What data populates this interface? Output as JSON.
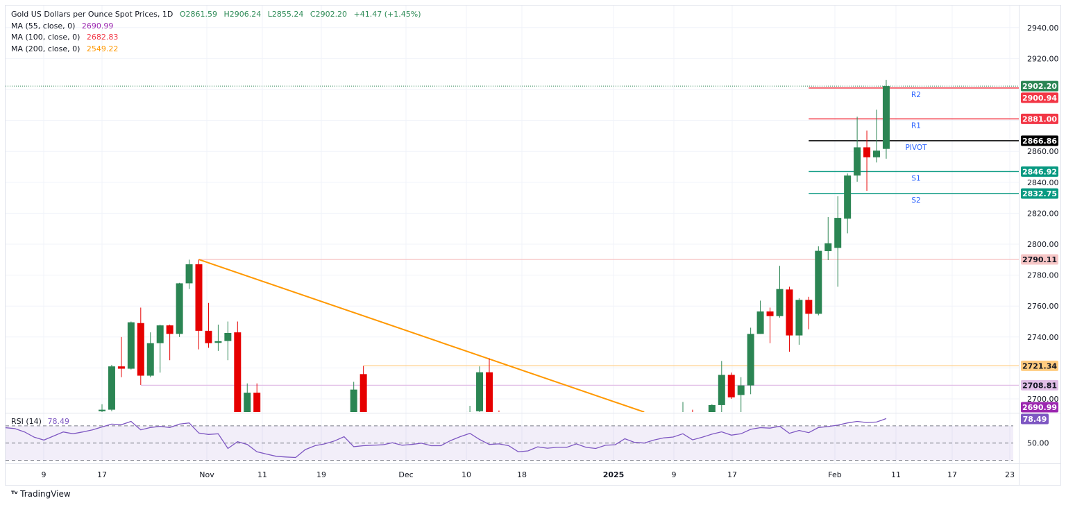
{
  "legend": {
    "title": "Gold US Dollars per Ounce Spot Prices, 1D",
    "open": "O2861.59",
    "high": "H2906.24",
    "low": "L2855.24",
    "close": "C2902.20",
    "change": "+41.47 (+1.45%)",
    "ma": [
      {
        "label": "MA (55, close, 0)",
        "value": "2690.99",
        "color": "#9c27b0"
      },
      {
        "label": "MA (100, close, 0)",
        "value": "2682.83",
        "color": "#f23645"
      },
      {
        "label": "MA (200, close, 0)",
        "value": "2549.22",
        "color": "#ff9800"
      }
    ]
  },
  "rsi_legend": {
    "label": "RSI (14)",
    "value": "78.49",
    "color": "#7e57c2"
  },
  "footer": {
    "brand": "TradingView",
    "logo_text": "17"
  },
  "colors": {
    "up": "#2b8553",
    "down": "#e60000",
    "pivot_text": "#2962ff",
    "trendline": "#ff9800"
  },
  "chart_data": {
    "type": "candlestick",
    "symbol": "Gold US Dollars per Ounce Spot Prices",
    "interval": "1D",
    "ylim": [
      2691.5,
      2948
    ],
    "y_ticks": [
      "2940.00",
      "2920.00",
      "2860.00",
      "2840.00",
      "2820.00",
      "2800.00",
      "2780.00",
      "2760.00",
      "2740.00",
      "2700.00"
    ],
    "x_ticks": [
      "9",
      "17",
      "Nov",
      "11",
      "19",
      "Dec",
      "10",
      "18",
      "2025",
      "9",
      "17",
      "Feb",
      "11",
      "17",
      "23"
    ],
    "grid": true,
    "candles": [
      {
        "date": "2024-10-17",
        "o": 2692,
        "h": 2696.5,
        "l": 2691,
        "c": 2693
      },
      {
        "date": "2024-10-18",
        "o": 2693,
        "h": 2722,
        "l": 2692,
        "c": 2721
      },
      {
        "date": "2024-10-21",
        "o": 2721,
        "h": 2740,
        "l": 2714,
        "c": 2719.5
      },
      {
        "date": "2024-10-22",
        "o": 2719.5,
        "h": 2750,
        "l": 2719,
        "c": 2749.5
      },
      {
        "date": "2024-10-23",
        "o": 2749,
        "h": 2759,
        "l": 2709,
        "c": 2715
      },
      {
        "date": "2024-10-24",
        "o": 2715,
        "h": 2743,
        "l": 2714,
        "c": 2736
      },
      {
        "date": "2024-10-25",
        "o": 2736,
        "h": 2748,
        "l": 2717,
        "c": 2747.5
      },
      {
        "date": "2024-10-28",
        "o": 2747.5,
        "h": 2748,
        "l": 2725,
        "c": 2742
      },
      {
        "date": "2024-10-29",
        "o": 2742,
        "h": 2775,
        "l": 2740,
        "c": 2774.7
      },
      {
        "date": "2024-10-30",
        "o": 2774.7,
        "h": 2790,
        "l": 2771,
        "c": 2787
      },
      {
        "date": "2024-10-31",
        "o": 2787,
        "h": 2790.1,
        "l": 2732,
        "c": 2744
      },
      {
        "date": "2024-11-01",
        "o": 2744,
        "h": 2762,
        "l": 2733,
        "c": 2736
      },
      {
        "date": "2024-11-04",
        "o": 2736.2,
        "h": 2748,
        "l": 2731,
        "c": 2737.3
      },
      {
        "date": "2024-11-05",
        "o": 2737.4,
        "h": 2750,
        "l": 2725,
        "c": 2742.6
      },
      {
        "date": "2024-11-06",
        "o": 2743,
        "h": 2750,
        "l": 2652,
        "c": 2659
      },
      {
        "date": "2024-11-07",
        "o": 2659,
        "h": 2710,
        "l": 2655,
        "c": 2704
      },
      {
        "date": "2024-11-08",
        "o": 2704,
        "h": 2710,
        "l": 2679,
        "c": 2685
      },
      {
        "date": "2024-11-22",
        "o": 2670,
        "h": 2711,
        "l": 2665,
        "c": 2706
      },
      {
        "date": "2024-11-25",
        "o": 2716,
        "h": 2721.3,
        "l": 2615,
        "c": 2625
      },
      {
        "date": "2024-12-10",
        "o": 2660,
        "h": 2695.5,
        "l": 2655,
        "c": 2691.5
      },
      {
        "date": "2024-12-11",
        "o": 2692,
        "h": 2721,
        "l": 2689,
        "c": 2717.2
      },
      {
        "date": "2024-12-12",
        "o": 2717.2,
        "h": 2726.2,
        "l": 2675,
        "c": 2680
      },
      {
        "date": "2024-12-13",
        "o": 2680,
        "h": 2692.5,
        "l": 2645,
        "c": 2648
      },
      {
        "date": "2025-01-10",
        "o": 2670,
        "h": 2698,
        "l": 2665,
        "c": 2689
      },
      {
        "date": "2025-01-13",
        "o": 2690,
        "h": 2693,
        "l": 2656,
        "c": 2662
      },
      {
        "date": "2025-01-14",
        "o": 2662,
        "h": 2679,
        "l": 2660,
        "c": 2677
      },
      {
        "date": "2025-01-15",
        "o": 2677,
        "h": 2696.5,
        "l": 2670,
        "c": 2696
      },
      {
        "date": "2025-01-16",
        "o": 2696,
        "h": 2724.5,
        "l": 2690,
        "c": 2715.5
      },
      {
        "date": "2025-01-17",
        "o": 2715.5,
        "h": 2717,
        "l": 2700,
        "c": 2701
      },
      {
        "date": "2025-01-20",
        "o": 2702.5,
        "h": 2714,
        "l": 2690,
        "c": 2708.7
      },
      {
        "date": "2025-01-21",
        "o": 2708.7,
        "h": 2746,
        "l": 2703,
        "c": 2742
      },
      {
        "date": "2025-01-22",
        "o": 2742,
        "h": 2763.5,
        "l": 2742,
        "c": 2756.5
      },
      {
        "date": "2025-01-23",
        "o": 2756.5,
        "h": 2759,
        "l": 2736,
        "c": 2753.5
      },
      {
        "date": "2025-01-24",
        "o": 2753.5,
        "h": 2786,
        "l": 2752.5,
        "c": 2771
      },
      {
        "date": "2025-01-27",
        "o": 2770.7,
        "h": 2772.5,
        "l": 2730.5,
        "c": 2741
      },
      {
        "date": "2025-01-28",
        "o": 2741,
        "h": 2765,
        "l": 2735,
        "c": 2764
      },
      {
        "date": "2025-01-29",
        "o": 2764,
        "h": 2766,
        "l": 2745,
        "c": 2755
      },
      {
        "date": "2025-01-30",
        "o": 2755,
        "h": 2798.6,
        "l": 2754,
        "c": 2795.7
      },
      {
        "date": "2025-01-31",
        "o": 2795.5,
        "h": 2817.5,
        "l": 2789.7,
        "c": 2800.6
      },
      {
        "date": "2025-02-03",
        "o": 2797.6,
        "h": 2831,
        "l": 2772.5,
        "c": 2817
      },
      {
        "date": "2025-02-04",
        "o": 2816.5,
        "h": 2845.7,
        "l": 2807,
        "c": 2844.4
      },
      {
        "date": "2025-02-05",
        "o": 2844.4,
        "h": 2882.4,
        "l": 2840.4,
        "c": 2862.6
      },
      {
        "date": "2025-02-06",
        "o": 2862.6,
        "h": 2873.4,
        "l": 2834.5,
        "c": 2856.2
      },
      {
        "date": "2025-02-07",
        "o": 2856.2,
        "h": 2887,
        "l": 2852.8,
        "c": 2860.5
      },
      {
        "date": "2025-02-10",
        "o": 2861.59,
        "h": 2906.24,
        "l": 2855.24,
        "c": 2902.2
      }
    ],
    "last_price": {
      "value": 2902.2,
      "label": "2902.20",
      "color": "#2b8553"
    },
    "pivots": [
      {
        "name": "R2",
        "value": 2900.94,
        "label": "2900.94",
        "color": "#f23645"
      },
      {
        "name": "R1",
        "value": 2881.0,
        "label": "2881.00",
        "color": "#f23645"
      },
      {
        "name": "PIVOT",
        "value": 2866.86,
        "label": "2866.86",
        "color": "#000000"
      },
      {
        "name": "S1",
        "value": 2846.92,
        "label": "2846.92",
        "color": "#089981"
      },
      {
        "name": "S2",
        "value": 2832.75,
        "label": "2832.75",
        "color": "#089981"
      }
    ],
    "pivot_start_date": "2025-01-30",
    "horizontal_lines": [
      {
        "value": 2790.11,
        "label": "2790.11",
        "start": "2024-10-31",
        "color": "#f7c6c6",
        "text_color": "#131722"
      },
      {
        "value": 2721.34,
        "label": "2721.34",
        "start": "2024-11-25",
        "color": "#ffcc80",
        "text_color": "#131722"
      },
      {
        "value": 2708.81,
        "label": "2708.81",
        "start": "2024-10-23",
        "color": "#e1bee7",
        "text_color": "#131722"
      }
    ],
    "ma_tag": {
      "value": 2690.99,
      "label": "2690.99",
      "color": "#9c27b0"
    },
    "trendline": {
      "from": {
        "date": "2024-10-31",
        "price": 2790.1
      },
      "to": {
        "date": "2025-01-06",
        "price": 2690.6
      },
      "color": "#ff9800"
    },
    "rsi": {
      "period": 14,
      "levels": [
        30,
        50,
        70
      ],
      "level_label": "50.00",
      "last_label": "78.49",
      "color": "#7e57c2",
      "values": [
        67.9,
        66.8,
        62.9,
        56.8,
        53.5,
        58.2,
        62.9,
        60.8,
        62.9,
        65.3,
        68.7,
        72,
        71.3,
        75.2,
        65.3,
        68.1,
        69.4,
        68.1,
        72,
        73.4,
        61.6,
        60,
        60.8,
        43.7,
        51.6,
        48.4,
        39.8,
        37.2,
        34.6,
        33.8,
        33.2,
        42.4,
        46.9,
        49,
        52.4,
        57.4,
        45.8,
        46.9,
        47.4,
        48,
        50.3,
        47.4,
        48.4,
        49.8,
        46.9,
        46.9,
        52.9,
        57.4,
        61.3,
        54.2,
        48.4,
        49,
        46.9,
        39.8,
        40.9,
        45.6,
        44,
        45,
        45,
        49,
        45,
        43.7,
        47.4,
        48,
        55,
        50.8,
        50,
        53.5,
        56,
        57,
        60.8,
        53.7,
        56.8,
        60.3,
        63.1,
        59.2,
        60.8,
        66,
        67.9,
        67.3,
        69.5,
        61.3,
        64.7,
        62.1,
        68.1,
        69.2,
        70.8,
        73.4,
        75.2,
        73.9,
        74.4,
        78.49
      ]
    }
  }
}
